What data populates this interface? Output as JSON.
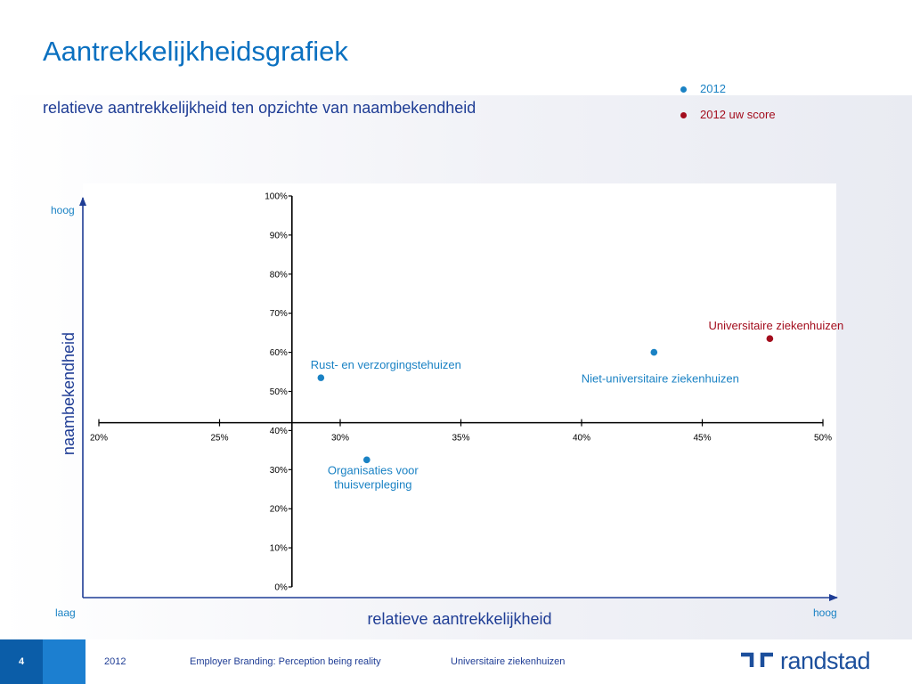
{
  "title": "Aantrekkelijkheidsgrafiek",
  "subtitle": "relatieve aantrekkelijkheid ten opzichte van naambekendheid",
  "legend": [
    {
      "label": "2012",
      "color": "#1a82c4"
    },
    {
      "label": "2012 uw score",
      "color": "#a30d1d"
    }
  ],
  "chart_data": {
    "type": "scatter",
    "xlabel": "relatieve aantrekkelijkheid",
    "ylabel": "naambekendheid",
    "xlim": [
      20,
      50
    ],
    "ylim": [
      0,
      100
    ],
    "x_ticks": [
      "20%",
      "25%",
      "30%",
      "35%",
      "40%",
      "45%",
      "50%"
    ],
    "y_ticks": [
      "0%",
      "10%",
      "20%",
      "30%",
      "40%",
      "50%",
      "60%",
      "70%",
      "80%",
      "90%",
      "100%"
    ],
    "axis_cross": {
      "x": 28,
      "y": 42
    },
    "axis_ends": {
      "x_low": "laag",
      "x_high": "hoog",
      "y_high": "hoog"
    },
    "series": [
      {
        "name": "2012",
        "color": "#1a82c4",
        "points": [
          {
            "label": "Rust- en verzorgingstehuizen",
            "x": 29.2,
            "y": 53.5
          },
          {
            "label": "Organisaties voor thuisverpleging",
            "x": 31.1,
            "y": 32.5
          },
          {
            "label": "Niet-universitaire ziekenhuizen",
            "x": 43.0,
            "y": 60.0
          }
        ]
      },
      {
        "name": "2012 uw score",
        "color": "#a30d1d",
        "points": [
          {
            "label": "Universitaire ziekenhuizen",
            "x": 47.8,
            "y": 63.5
          }
        ]
      }
    ]
  },
  "footer": {
    "page_number": "4",
    "year": "2012",
    "presentation": "Employer Branding: Perception being reality",
    "sector": "Universitaire ziekenhuizen",
    "brand": "randstad"
  }
}
